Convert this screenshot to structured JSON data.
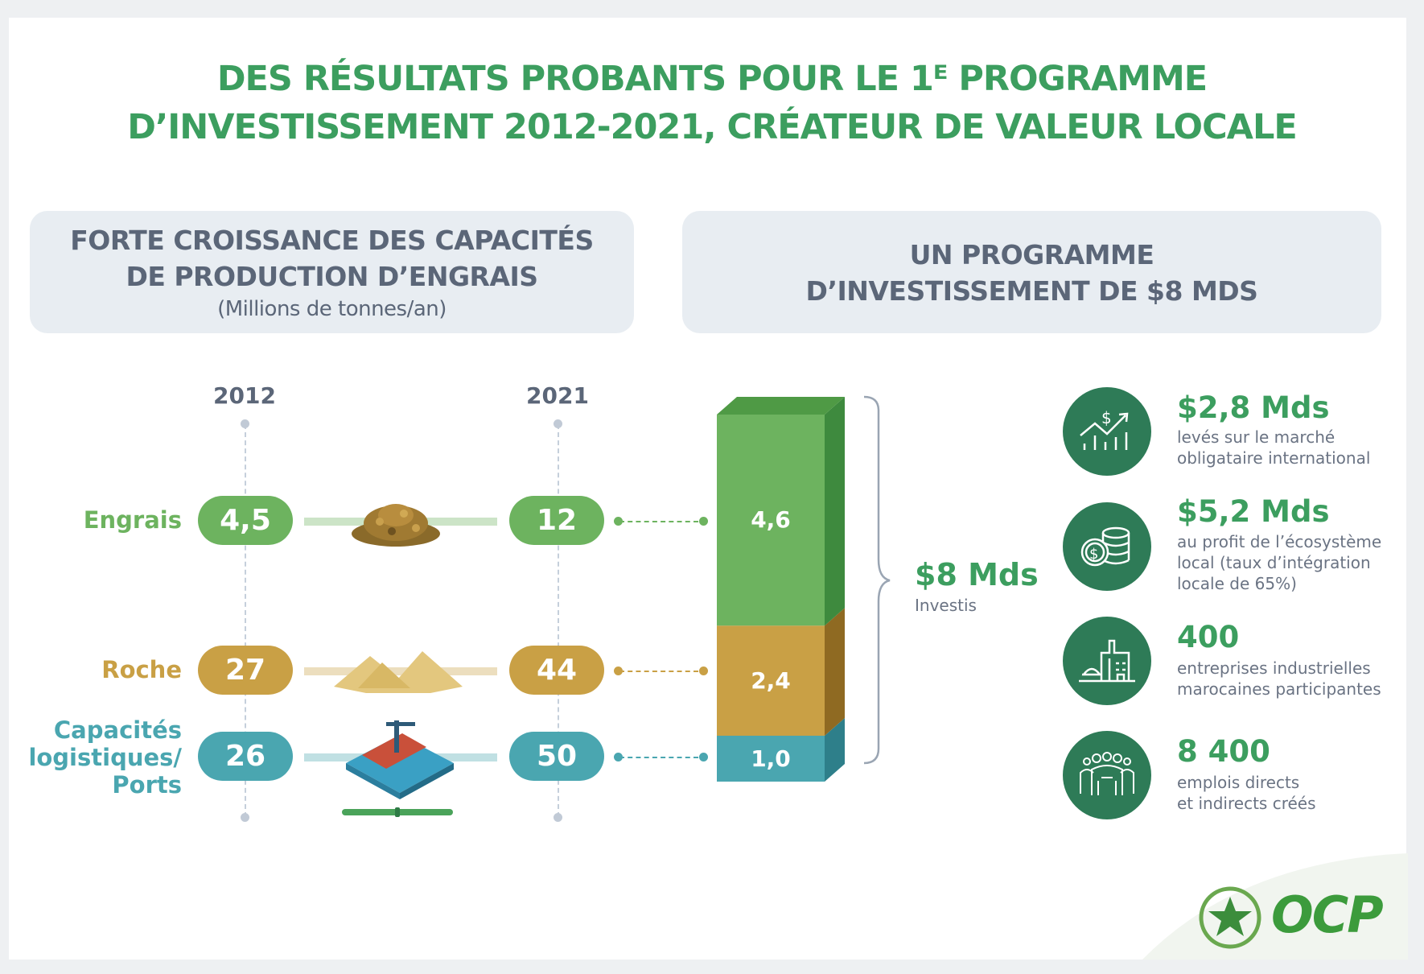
{
  "title": {
    "line1": "DES RÉSULTATS PROBANTS POUR LE 1ᴱ PROGRAMME",
    "line2": "D’INVESTISSEMENT 2012-2021, CRÉATEUR DE VALEUR LOCALE"
  },
  "left_header": {
    "line1": "FORTE CROISSANCE DES CAPACITÉS",
    "line2": "DE PRODUCTION D’ENGRAIS",
    "unit": "(Millions de tonnes/an)"
  },
  "right_header": {
    "line1": "UN PROGRAMME",
    "line2": "D’INVESTISSEMENT DE $8 MDS"
  },
  "years": [
    "2012",
    "2021"
  ],
  "rows": [
    {
      "label": "Engrais",
      "v2012": "4,5",
      "v2021": "12",
      "color": "#6db35f",
      "icon": "fertilizer-pile-icon"
    },
    {
      "label": "Roche",
      "v2012": "27",
      "v2021": "44",
      "color": "#c9a045",
      "icon": "rock-pile-icon"
    },
    {
      "label_lines": [
        "Capacités",
        "logistiques/",
        "Ports"
      ],
      "v2012": "26",
      "v2021": "50",
      "color": "#4aa6b0",
      "icon": "port-ship-icon"
    }
  ],
  "total": {
    "value": "$8 Mds",
    "caption": "Investis"
  },
  "chart_data": {
    "type": "bar",
    "stacked": true,
    "unit": "$ Mds",
    "categories": [
      "Investissement"
    ],
    "series": [
      {
        "name": "Engrais",
        "values": [
          4.6
        ],
        "label": "4,6",
        "color": "#6db35f"
      },
      {
        "name": "Roche",
        "values": [
          2.4
        ],
        "label": "2,4",
        "color": "#c9a045"
      },
      {
        "name": "Capacités logistiques/Ports",
        "values": [
          1.0
        ],
        "label": "1,0",
        "color": "#4aa6b0"
      }
    ],
    "total": 8
  },
  "stats": [
    {
      "value": "$2,8 Mds",
      "desc": [
        "levés sur le marché",
        "obligataire international"
      ],
      "icon": "chart-dollar-up-icon"
    },
    {
      "value": "$5,2 Mds",
      "desc": [
        "au profit de l’écosystème",
        "local (taux d’intégration",
        "locale de 65%)"
      ],
      "icon": "coins-stack-icon"
    },
    {
      "value": "400",
      "desc": [
        "entreprises industrielles",
        "marocaines participantes"
      ],
      "icon": "factory-icon"
    },
    {
      "value": "8 400",
      "desc": [
        "emplois directs",
        "et indirects créés"
      ],
      "icon": "people-group-icon"
    }
  ],
  "logo": {
    "text": "OCP"
  },
  "colors": {
    "title": "#3c9e5f",
    "circle": "#2e7b57",
    "header_bg": "#e8edf2"
  }
}
